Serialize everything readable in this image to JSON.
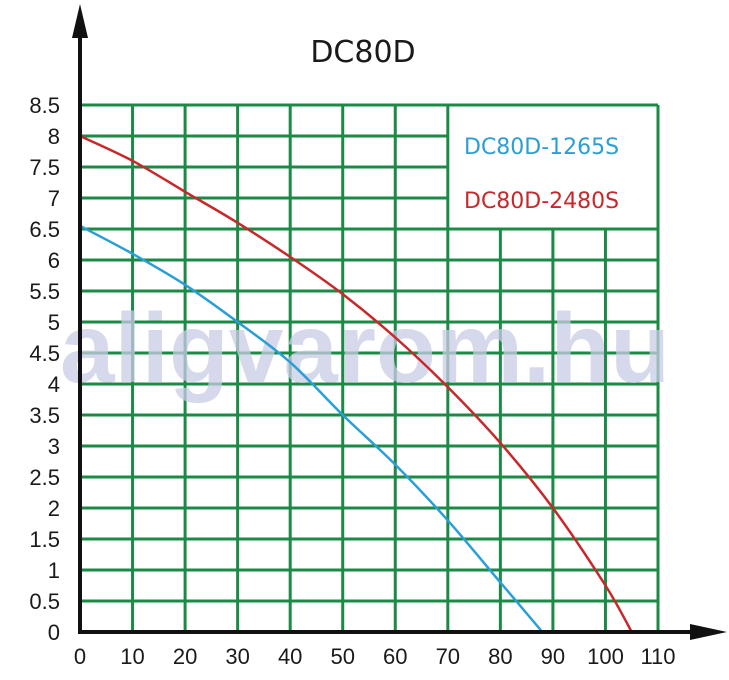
{
  "chart_data": {
    "type": "line",
    "title": "DC80D",
    "xlabel": "",
    "ylabel": "",
    "xlim": [
      0,
      110
    ],
    "ylim": [
      0,
      8.5
    ],
    "x_ticks": [
      "0",
      "10",
      "20",
      "30",
      "40",
      "50",
      "60",
      "70",
      "80",
      "90",
      "100",
      "110"
    ],
    "y_ticks": [
      "0",
      "0.5",
      "1",
      "1.5",
      "2",
      "2.5",
      "3",
      "3.5",
      "4",
      "4.5",
      "5",
      "5.5",
      "6",
      "6.5",
      "7",
      "7.5",
      "8",
      "8.5"
    ],
    "grid": true,
    "legend_position": "top-right",
    "watermark": "aligvarom.hu",
    "series": [
      {
        "name": "DC80D-1265S",
        "color": "#2a9fd6",
        "x": [
          0,
          10,
          20,
          30,
          40,
          50,
          60,
          70,
          80,
          88
        ],
        "y": [
          6.55,
          6.1,
          5.6,
          5.0,
          4.35,
          3.5,
          2.7,
          1.8,
          0.8,
          0
        ]
      },
      {
        "name": "DC80D-2480S",
        "color": "#c8282a",
        "x": [
          0,
          10,
          20,
          30,
          40,
          50,
          60,
          70,
          80,
          90,
          100,
          105
        ],
        "y": [
          8.0,
          7.6,
          7.1,
          6.6,
          6.05,
          5.45,
          4.75,
          3.95,
          3.05,
          2.0,
          0.75,
          0
        ]
      }
    ]
  },
  "colors": {
    "grid": "#1b8a45",
    "axis": "#111111"
  }
}
